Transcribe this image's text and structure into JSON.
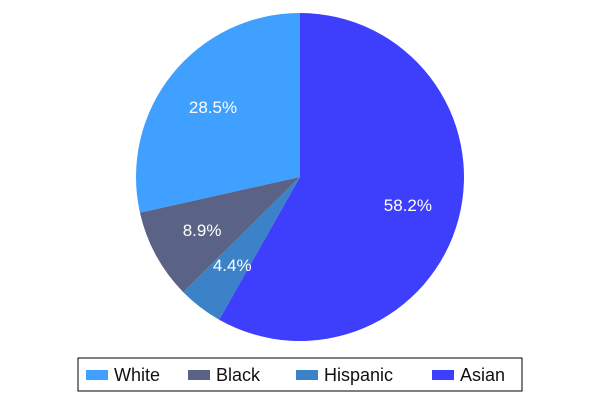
{
  "chart_data": {
    "type": "pie",
    "title": "",
    "categories": [
      "White",
      "Black",
      "Hispanic",
      "Asian"
    ],
    "values": [
      28.5,
      8.9,
      4.4,
      58.2
    ],
    "labels": [
      "28.5%",
      "8.9%",
      "4.4%",
      "58.2%"
    ],
    "colors": [
      "#3fa0ff",
      "#5a6385",
      "#3c82c8",
      "#3e3ffc"
    ],
    "start_angle_deg": 0,
    "direction": "counterclockwise",
    "legend_position": "bottom"
  }
}
